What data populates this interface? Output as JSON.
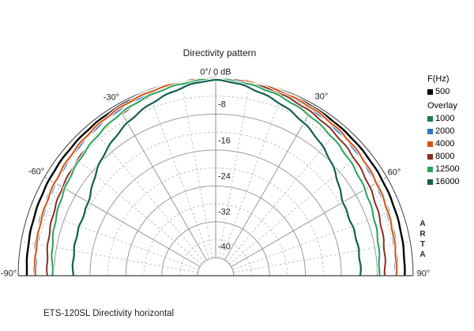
{
  "title": "Directivity pattern",
  "polar_top_label": "0°/ 0 dB",
  "caption": "ETS-120SL Directivity horizontal",
  "watermark": "ARTA",
  "angle_labels": {
    "minus30": "-30°",
    "plus30": "30°",
    "minus60": "-60°",
    "plus60": "60°",
    "minus90": "-90°",
    "plus90": "90°"
  },
  "db_tick_labels": [
    "-8",
    "-16",
    "-24",
    "-32",
    "-40"
  ],
  "legend": {
    "freq_header": "F(Hz)",
    "base_series": {
      "label": "500",
      "color": "#000000"
    },
    "overlay_header": "Overlay",
    "overlay_items": [
      {
        "label": "1000",
        "color": "#1b7d45"
      },
      {
        "label": "2000",
        "color": "#2e74c8"
      },
      {
        "label": "4000",
        "color": "#d35113"
      },
      {
        "label": "8000",
        "color": "#8a2f24"
      },
      {
        "label": "12500",
        "color": "#27a25a"
      },
      {
        "label": "16000",
        "color": "#115e52"
      }
    ]
  },
  "chart_data": {
    "type": "polar",
    "subtype": "half-polar-directivity",
    "title": "Directivity pattern",
    "radial_unit": "dB",
    "radial_outer_db": 0,
    "radial_center_db": -44,
    "radial_ticks_db": [
      -8,
      -16,
      -24,
      -32,
      -40
    ],
    "radial_solid_step_db": 8,
    "radial_dashed_step_db": 4,
    "angular_range_deg": [
      -90,
      90
    ],
    "angular_solid_step_deg": 30,
    "angular_dashed_step_deg": 10,
    "angles_deg": [
      -90,
      -75,
      -60,
      -45,
      -30,
      -15,
      0,
      15,
      30,
      45,
      60,
      75,
      90
    ],
    "series": [
      {
        "name": "500",
        "color": "#000000",
        "width": 2.4,
        "values": [
          -1.9,
          -1.55,
          -1.2,
          -0.9,
          -0.6,
          -0.3,
          -0.1,
          -0.3,
          -0.6,
          -0.9,
          -1.2,
          -1.55,
          -1.9
        ]
      },
      {
        "name": "1000",
        "color": "#1b7d45",
        "width": 2.0,
        "values": [
          -3.6,
          -3.1,
          -2.5,
          -1.8,
          -1.05,
          -0.45,
          -0.1,
          -0.45,
          -1.05,
          -1.8,
          -2.5,
          -3.1,
          -3.6
        ]
      },
      {
        "name": "2000",
        "color": "#2e74c8",
        "width": 2.0,
        "values": [
          -3.95,
          -3.45,
          -2.8,
          -2.05,
          -1.25,
          -0.55,
          -0.1,
          -0.55,
          -1.25,
          -2.05,
          -2.8,
          -3.45,
          -3.9
        ]
      },
      {
        "name": "4000",
        "color": "#d35113",
        "width": 2.0,
        "values": [
          -3.75,
          -3.3,
          -2.6,
          -1.75,
          -0.95,
          -0.35,
          -0.05,
          -0.35,
          -0.95,
          -1.75,
          -2.6,
          -3.3,
          -3.75
        ]
      },
      {
        "name": "8000",
        "color": "#8a2f24",
        "width": 2.0,
        "values": [
          -6.5,
          -5.7,
          -4.6,
          -3.5,
          -2.3,
          -0.9,
          -0.15,
          -0.7,
          -1.8,
          -3.1,
          -4.4,
          -5.6,
          -6.3
        ]
      },
      {
        "name": "12500",
        "color": "#27a25a",
        "width": 2.0,
        "values": [
          -7.7,
          -6.6,
          -5.2,
          -3.7,
          -2.1,
          -0.9,
          -0.25,
          -1.1,
          -2.6,
          -4.2,
          -5.6,
          -6.8,
          -7.6
        ]
      },
      {
        "name": "16000",
        "color": "#115e52",
        "width": 2.2,
        "values": [
          -12.2,
          -11.8,
          -11.2,
          -7.8,
          -4.7,
          -2.2,
          -0.45,
          -2.2,
          -4.7,
          -7.8,
          -11.2,
          -11.6,
          -11.7
        ]
      }
    ]
  }
}
